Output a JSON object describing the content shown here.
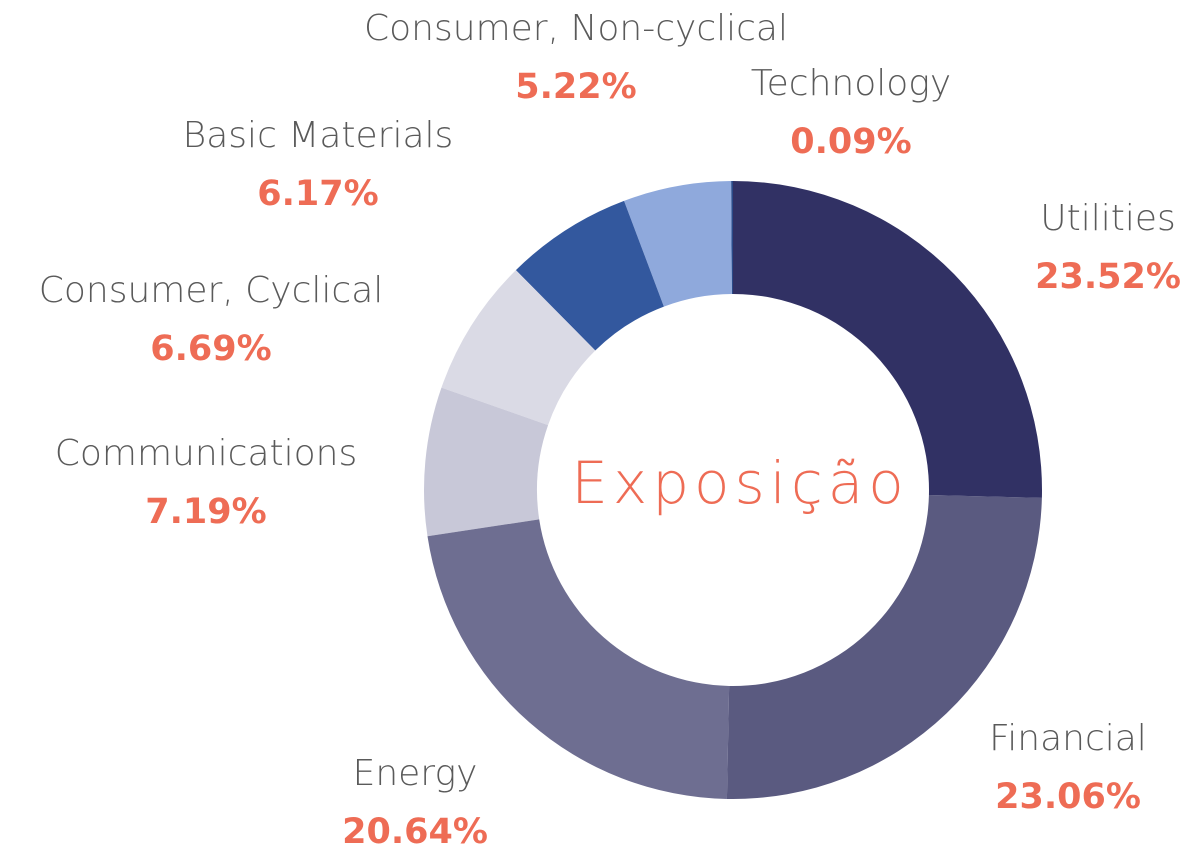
{
  "chart_data": {
    "type": "donut",
    "center_label": "Exposição",
    "categories": [
      "Utilities",
      "Financial",
      "Energy",
      "Communications",
      "Consumer, Cyclical",
      "Basic Materials",
      "Consumer, Non-cyclical",
      "Technology"
    ],
    "values": [
      23.52,
      23.06,
      20.64,
      7.19,
      6.69,
      6.17,
      5.22,
      0.09
    ],
    "value_labels": [
      "23.52%",
      "23.06%",
      "20.64%",
      "7.19%",
      "6.69%",
      "6.17%",
      "5.22%",
      "0.09%"
    ],
    "colors": [
      "#313164",
      "#5a5a80",
      "#6e6e91",
      "#c8c8d8",
      "#dadae5",
      "#33589e",
      "#8fa9dc",
      "#2a4a88"
    ]
  }
}
